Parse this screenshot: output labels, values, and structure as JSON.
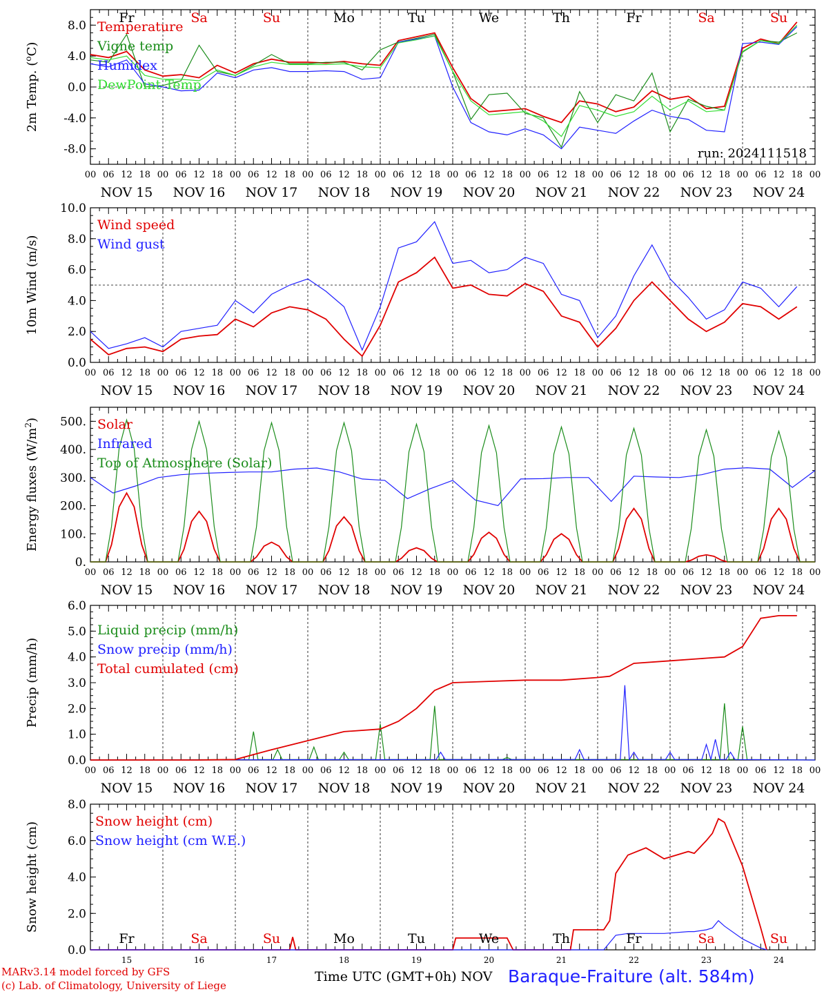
{
  "footer": {
    "model_line": "MARv3.14 model forced by GFS",
    "lab_line": "(c) Lab. of Climatology, University of Liege",
    "time_label": "Time UTC (GMT+0h)",
    "month_label": "NOV",
    "station": "Baraque-Fraiture (alt. 584m)"
  },
  "run_label": "run: 2024111518",
  "colors": {
    "red": "#e00000",
    "green": "#1a8c1a",
    "blue": "#2020ff",
    "lightgreen": "#33dd33",
    "weekend": "#e00000"
  },
  "days": [
    {
      "abbr": "Fr",
      "date": "NOV 15",
      "num": "15",
      "weekend": false
    },
    {
      "abbr": "Sa",
      "date": "NOV 16",
      "num": "16",
      "weekend": true
    },
    {
      "abbr": "Su",
      "date": "NOV 17",
      "num": "17",
      "weekend": true
    },
    {
      "abbr": "Mo",
      "date": "NOV 18",
      "num": "18",
      "weekend": false
    },
    {
      "abbr": "Tu",
      "date": "NOV 19",
      "num": "19",
      "weekend": false
    },
    {
      "abbr": "We",
      "date": "NOV 20",
      "num": "20",
      "weekend": false
    },
    {
      "abbr": "Th",
      "date": "NOV 21",
      "num": "21",
      "weekend": false
    },
    {
      "abbr": "Fr",
      "date": "NOV 22",
      "num": "22",
      "weekend": false
    },
    {
      "abbr": "Sa",
      "date": "NOV 23",
      "num": "23",
      "weekend": true
    },
    {
      "abbr": "Su",
      "date": "NOV 24",
      "num": "24",
      "weekend": true
    }
  ],
  "hour_ticks": [
    "00",
    "06",
    "12",
    "18"
  ],
  "chart_data": [
    {
      "type": "line",
      "ylabel": "2m Temp. (oC)",
      "ylim": [
        -10,
        10
      ],
      "yticks": [
        -8,
        -4,
        0,
        4,
        8
      ],
      "ytick_labels": [
        "-8.0",
        "-4.0",
        "0.0",
        "4.0",
        "8.0"
      ],
      "hline": 0,
      "x_hours": [
        0,
        6,
        12,
        18,
        24,
        30,
        36,
        42,
        48,
        54,
        60,
        66,
        72,
        78,
        84,
        90,
        96,
        102,
        108,
        114,
        120,
        126,
        132,
        138,
        144,
        150,
        156,
        162,
        168,
        174,
        180,
        186,
        192,
        198,
        204,
        210,
        216,
        222,
        228,
        234
      ],
      "series": [
        {
          "name": "Temperature",
          "color": "red",
          "values": [
            4.2,
            3.8,
            4.6,
            2.2,
            1.4,
            1.6,
            1.2,
            2.8,
            1.8,
            3.0,
            3.6,
            3.2,
            3.2,
            3.1,
            3.3,
            3.0,
            2.8,
            6.0,
            6.5,
            7.0,
            2.5,
            -1.5,
            -3.2,
            -3.0,
            -2.8,
            -3.8,
            -4.6,
            -1.8,
            -2.2,
            -3.2,
            -2.6,
            -0.5,
            -1.6,
            -1.2,
            -2.8,
            -2.5,
            5.0,
            6.2,
            5.6,
            8.4
          ]
        },
        {
          "name": "Vigne temp",
          "color": "green",
          "values": [
            3.5,
            3.2,
            6.8,
            0.0,
            0.2,
            0.8,
            5.4,
            2.0,
            1.5,
            2.8,
            4.2,
            3.0,
            3.0,
            3.2,
            3.2,
            2.2,
            4.8,
            5.8,
            6.3,
            6.8,
            2.0,
            -4.2,
            -1.0,
            -0.8,
            -3.4,
            -4.0,
            -7.8,
            -0.6,
            -4.6,
            -1.0,
            -1.8,
            1.8,
            -5.8,
            -1.6,
            -2.5,
            -3.0,
            4.5,
            6.0,
            5.8,
            7.0
          ]
        },
        {
          "name": "Humidex",
          "color": "blue",
          "values": [
            3.0,
            2.6,
            3.5,
            0.4,
            0.0,
            -0.5,
            -0.4,
            1.8,
            1.2,
            2.2,
            2.5,
            2.0,
            2.0,
            2.1,
            2.0,
            1.0,
            1.2,
            5.8,
            6.2,
            6.6,
            0.0,
            -4.6,
            -5.8,
            -6.2,
            -5.4,
            -6.2,
            -8.0,
            -5.2,
            -5.6,
            -6.0,
            -4.4,
            -3.0,
            -3.8,
            -4.2,
            -5.6,
            -5.8,
            5.6,
            5.8,
            5.5,
            7.8
          ]
        },
        {
          "name": "DewPoint Temp",
          "color": "lightgreen",
          "values": [
            3.8,
            3.5,
            4.0,
            1.5,
            1.0,
            1.0,
            0.8,
            2.2,
            1.5,
            2.6,
            3.2,
            2.9,
            2.9,
            2.9,
            3.0,
            2.6,
            2.5,
            5.7,
            6.1,
            6.6,
            2.0,
            -1.8,
            -3.6,
            -3.4,
            -3.2,
            -4.4,
            -6.4,
            -2.4,
            -3.0,
            -3.8,
            -3.2,
            -1.2,
            -3.0,
            -1.8,
            -3.2,
            -3.0,
            4.6,
            6.0,
            5.6,
            8.0
          ]
        }
      ]
    },
    {
      "type": "line",
      "ylabel": "10m Wind (m/s)",
      "ylim": [
        0,
        10
      ],
      "yticks": [
        0,
        2,
        4,
        6,
        8,
        10
      ],
      "ytick_labels": [
        "0.0",
        "2.0",
        "4.0",
        "6.0",
        "8.0",
        "10.0"
      ],
      "hline": 5,
      "x_hours": [
        0,
        6,
        12,
        18,
        24,
        30,
        36,
        42,
        48,
        54,
        60,
        66,
        72,
        78,
        84,
        90,
        96,
        102,
        108,
        114,
        120,
        126,
        132,
        138,
        144,
        150,
        156,
        162,
        168,
        174,
        180,
        186,
        192,
        198,
        204,
        210,
        216,
        222,
        228,
        234
      ],
      "series": [
        {
          "name": "Wind speed",
          "color": "red",
          "values": [
            1.5,
            0.5,
            0.9,
            1.0,
            0.7,
            1.5,
            1.7,
            1.8,
            2.8,
            2.3,
            3.2,
            3.6,
            3.4,
            2.8,
            1.5,
            0.4,
            2.4,
            5.2,
            5.8,
            6.8,
            4.8,
            5.0,
            4.4,
            4.3,
            5.1,
            4.6,
            3.0,
            2.6,
            1.0,
            2.2,
            4.0,
            5.2,
            4.0,
            2.8,
            2.0,
            2.6,
            3.8,
            3.6,
            2.8,
            3.6
          ]
        },
        {
          "name": "Wind gust",
          "color": "blue",
          "values": [
            2.0,
            0.9,
            1.2,
            1.6,
            1.0,
            2.0,
            2.2,
            2.4,
            4.0,
            3.2,
            4.4,
            5.0,
            5.4,
            4.6,
            3.6,
            0.8,
            3.6,
            7.4,
            7.8,
            9.1,
            6.4,
            6.6,
            5.8,
            6.0,
            6.8,
            6.4,
            4.4,
            4.0,
            1.6,
            3.0,
            5.6,
            7.6,
            5.4,
            4.2,
            2.8,
            3.4,
            5.2,
            4.8,
            3.6,
            4.9
          ]
        }
      ]
    },
    {
      "type": "line",
      "ylabel": "Energy fluxes (W/m2)",
      "ylim": [
        0,
        550
      ],
      "yticks": [
        0,
        100,
        200,
        300,
        400,
        500
      ],
      "ytick_labels": [
        "0.",
        "100.",
        "200.",
        "300.",
        "400.",
        "500."
      ],
      "series": [
        {
          "name": "Solar",
          "color": "red",
          "daily_peaks": [
            245,
            180,
            70,
            160,
            50,
            105,
            100,
            190,
            25,
            190
          ]
        },
        {
          "name": "Infrared",
          "color": "blue",
          "values": [
            300,
            245,
            270,
            300,
            310,
            315,
            318,
            320,
            320,
            330,
            334,
            320,
            295,
            290,
            225,
            260,
            290,
            220,
            200,
            295,
            296,
            300,
            300,
            215,
            305,
            302,
            300,
            310,
            330,
            335,
            330,
            265,
            325
          ]
        },
        {
          "name": "Top of Atmosphere (Solar)",
          "color": "green",
          "daily_peaks": [
            505,
            500,
            495,
            495,
            490,
            485,
            480,
            475,
            470,
            465
          ]
        }
      ]
    },
    {
      "type": "line",
      "ylabel": "Precip (mm/h)",
      "ylim": [
        0,
        6
      ],
      "yticks": [
        0,
        1,
        2,
        3,
        4,
        5,
        6
      ],
      "ytick_labels": [
        "0.0",
        "1.0",
        "2.0",
        "3.0",
        "4.0",
        "5.0",
        "6.0"
      ],
      "x_hours": [
        0,
        24,
        36,
        48,
        60,
        72,
        84,
        96,
        102,
        108,
        114,
        120,
        132,
        144,
        156,
        168,
        172,
        180,
        192,
        204,
        210,
        216,
        222,
        228,
        234
      ],
      "series": [
        {
          "name": "Liquid precip (mm/h)",
          "color": "green",
          "peaks": [
            [
              54,
              1.1
            ],
            [
              62,
              0.4
            ],
            [
              74,
              0.5
            ],
            [
              84,
              0.3
            ],
            [
              96,
              1.4
            ],
            [
              114,
              2.1
            ],
            [
              138,
              0.1
            ],
            [
              210,
              2.2
            ],
            [
              216,
              1.3
            ]
          ]
        },
        {
          "name": "Snow precip (mm/h)",
          "color": "blue",
          "peaks": [
            [
              116,
              0.3
            ],
            [
              162,
              0.4
            ],
            [
              177,
              2.9
            ],
            [
              180,
              0.3
            ],
            [
              192,
              0.3
            ],
            [
              204,
              0.6
            ],
            [
              207,
              0.8
            ],
            [
              212,
              0.3
            ]
          ]
        },
        {
          "name": "Total cumulated (cm)",
          "color": "red",
          "values": [
            0.0,
            0.0,
            0.0,
            0.02,
            0.4,
            0.75,
            1.1,
            1.2,
            1.5,
            2.0,
            2.7,
            3.0,
            3.05,
            3.1,
            3.1,
            3.2,
            3.25,
            3.75,
            3.85,
            3.95,
            4.0,
            4.4,
            5.5,
            5.6,
            5.6
          ]
        }
      ]
    },
    {
      "type": "line",
      "ylabel": "Snow height (cm)",
      "ylim": [
        0,
        8
      ],
      "yticks": [
        0,
        2,
        4,
        6,
        8
      ],
      "ytick_labels": [
        "0.0",
        "2.0",
        "4.0",
        "6.0",
        "8.0"
      ],
      "x_hours": [
        0,
        66,
        67,
        68,
        120,
        121,
        138,
        140,
        159,
        160,
        170,
        172,
        174,
        178,
        184,
        190,
        198,
        200,
        204,
        206,
        208,
        210,
        216,
        222,
        224
      ],
      "series": [
        {
          "name": "Snow height (cm)",
          "color": "red",
          "values": [
            0,
            0,
            0.7,
            0,
            0,
            0.65,
            0.65,
            0,
            0,
            1.1,
            1.1,
            1.6,
            4.2,
            5.2,
            5.6,
            5.0,
            5.4,
            5.3,
            6.0,
            6.4,
            7.2,
            7.0,
            4.6,
            1.2,
            0
          ]
        },
        {
          "name": "Snow height (cm W.E.)",
          "color": "blue",
          "values": [
            0,
            0,
            0,
            0,
            0,
            0,
            0,
            0,
            0,
            0,
            0,
            0.4,
            0.8,
            0.9,
            0.9,
            0.9,
            1.0,
            1.0,
            1.1,
            1.2,
            1.6,
            1.3,
            0.6,
            0.1,
            0
          ]
        }
      ]
    }
  ],
  "panels": [
    {
      "ylabel_main": "2m Temp. (",
      "ylabel_sup": "o",
      "ylabel_end": "C)"
    },
    {
      "ylabel_main": "10m Wind (m/s)",
      "ylabel_sup": "",
      "ylabel_end": ""
    },
    {
      "ylabel_main": "Energy fluxes (W/m",
      "ylabel_sup": "2",
      "ylabel_end": ")"
    },
    {
      "ylabel_main": "Precip (mm/h)",
      "ylabel_sup": "",
      "ylabel_end": ""
    },
    {
      "ylabel_main": "Snow height (cm)",
      "ylabel_sup": "",
      "ylabel_end": ""
    }
  ]
}
